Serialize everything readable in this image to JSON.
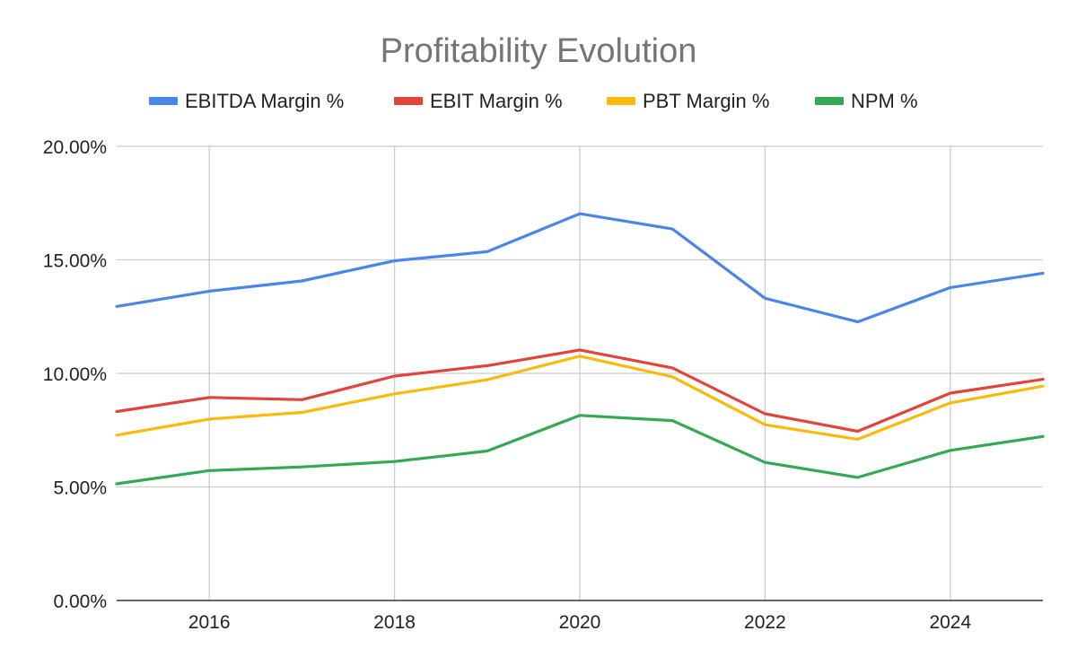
{
  "chart_data": {
    "type": "line",
    "title": "Profitability Evolution",
    "xlabel": "",
    "ylabel": "",
    "x": [
      2015,
      2016,
      2017,
      2018,
      2019,
      2020,
      2021,
      2022,
      2023,
      2024,
      2025
    ],
    "xlim": [
      2015,
      2025
    ],
    "x_ticks": [
      2016,
      2018,
      2020,
      2022,
      2024
    ],
    "ylim": [
      0,
      0.2
    ],
    "y_ticks": [
      0,
      0.05,
      0.1,
      0.15,
      0.2
    ],
    "y_tick_labels": [
      "0.00%",
      "5.00%",
      "10.00%",
      "15.00%",
      "20.00%"
    ],
    "grid": true,
    "legend_position": "top",
    "series": [
      {
        "name": "EBITDA  Margin %",
        "color": "#4a86e8",
        "values": [
          0.1295,
          0.1362,
          0.1407,
          0.1496,
          0.1536,
          0.1703,
          0.1636,
          0.1331,
          0.1227,
          0.1378,
          0.1441
        ]
      },
      {
        "name": "EBIT Margin %",
        "color": "#e0443a",
        "values": [
          0.0832,
          0.0894,
          0.0884,
          0.0988,
          0.1034,
          0.1103,
          0.1024,
          0.0822,
          0.0745,
          0.0913,
          0.0974
        ]
      },
      {
        "name": "PBT  Margin %",
        "color": "#f9bb0b",
        "values": [
          0.0728,
          0.0799,
          0.0828,
          0.091,
          0.0972,
          0.1076,
          0.0985,
          0.0774,
          0.071,
          0.087,
          0.0944
        ]
      },
      {
        "name": "NPM  %",
        "color": "#34a853",
        "values": [
          0.0514,
          0.0572,
          0.0588,
          0.0612,
          0.0658,
          0.0815,
          0.0792,
          0.0608,
          0.0542,
          0.0661,
          0.0722
        ]
      }
    ]
  }
}
